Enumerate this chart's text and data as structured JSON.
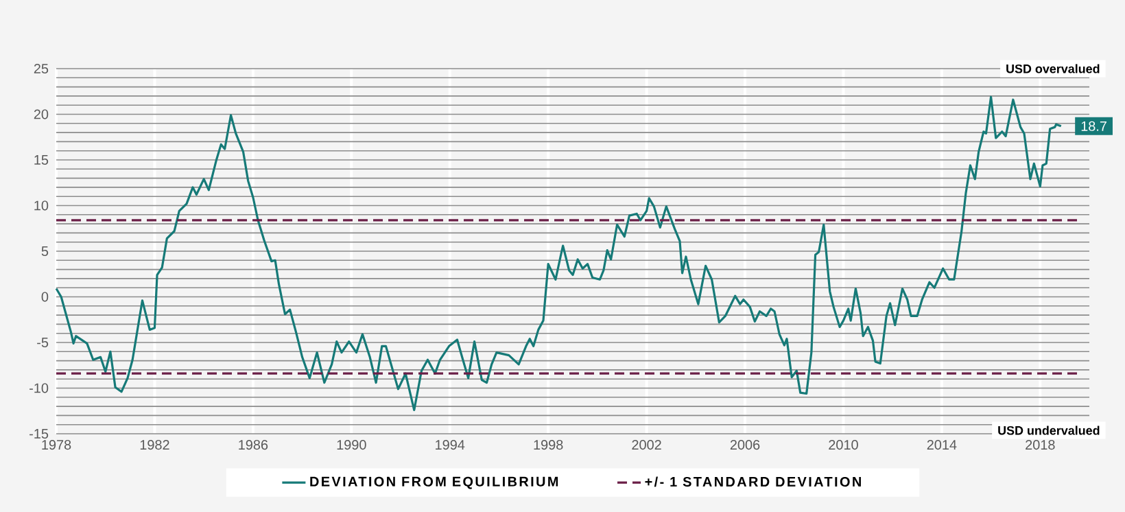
{
  "chart_data": {
    "type": "line",
    "xlim": [
      1978,
      2020
    ],
    "ylim": [
      -15,
      25
    ],
    "xticks": [
      1978,
      1982,
      1986,
      1990,
      1994,
      1998,
      2002,
      2006,
      2010,
      2014,
      2018
    ],
    "yticks": [
      -15,
      -10,
      -5,
      0,
      5,
      10,
      15,
      20,
      25
    ],
    "grid": true,
    "legend": "bottom",
    "series": [
      {
        "name": "DEVIATION FROM EQUILIBRIUM",
        "color": "#167a78",
        "line_style": "solid",
        "x": [
          1978.0,
          1978.2,
          1978.6,
          1978.7,
          1978.8,
          1979.25,
          1979.5,
          1979.8,
          1980.0,
          1980.2,
          1980.4,
          1980.65,
          1980.9,
          1981.1,
          1981.5,
          1981.8,
          1982.0,
          1982.1,
          1982.3,
          1982.5,
          1982.8,
          1983.0,
          1983.3,
          1983.55,
          1983.7,
          1984.0,
          1984.2,
          1984.5,
          1984.7,
          1984.85,
          1985.1,
          1985.3,
          1985.6,
          1985.8,
          1986.0,
          1986.2,
          1986.45,
          1986.75,
          1986.9,
          1987.05,
          1987.3,
          1987.5,
          1987.75,
          1988.0,
          1988.3,
          1988.6,
          1988.9,
          1989.2,
          1989.4,
          1989.6,
          1989.9,
          1990.2,
          1990.45,
          1990.75,
          1991.0,
          1991.24,
          1991.4,
          1991.9,
          1992.2,
          1992.55,
          1992.85,
          1993.1,
          1993.4,
          1993.6,
          1993.97,
          1994.3,
          1994.5,
          1994.75,
          1995.0,
          1995.3,
          1995.5,
          1995.7,
          1995.9,
          1996.4,
          1996.8,
          1997.1,
          1997.25,
          1997.4,
          1997.6,
          1997.8,
          1998.0,
          1998.3,
          1998.5,
          1998.6,
          1998.85,
          1999.0,
          1999.2,
          1999.4,
          1999.6,
          1999.8,
          2000.1,
          2000.25,
          2000.4,
          2000.55,
          2000.8,
          2001.1,
          2001.3,
          2001.6,
          2001.75,
          2002.0,
          2002.1,
          2002.3,
          2002.55,
          2002.8,
          2003.15,
          2003.35,
          2003.45,
          2003.6,
          2003.8,
          2004.1,
          2004.4,
          2004.65,
          2004.95,
          2005.2,
          2005.6,
          2005.8,
          2005.94,
          2006.2,
          2006.4,
          2006.6,
          2006.87,
          2007.05,
          2007.2,
          2007.4,
          2007.6,
          2007.7,
          2007.9,
          2008.1,
          2008.25,
          2008.5,
          2008.7,
          2008.86,
          2009.0,
          2009.2,
          2009.45,
          2009.6,
          2009.85,
          2010.0,
          2010.2,
          2010.3,
          2010.5,
          2010.7,
          2010.8,
          2011.0,
          2011.2,
          2011.3,
          2011.5,
          2011.75,
          2011.9,
          2012.1,
          2012.4,
          2012.6,
          2012.75,
          2013.0,
          2013.2,
          2013.5,
          2013.7,
          2014.05,
          2014.3,
          2014.5,
          2014.8,
          2014.98,
          2015.16,
          2015.35,
          2015.5,
          2015.7,
          2015.8,
          2016.0,
          2016.2,
          2016.45,
          2016.6,
          2016.9,
          2017.2,
          2017.35,
          2017.6,
          2017.75,
          2018.0,
          2018.1,
          2018.25,
          2018.4,
          2018.6,
          2018.65,
          2018.85
        ],
        "values": [
          0.9,
          0,
          -3.9,
          -5.1,
          -4.3,
          -5.1,
          -6.9,
          -6.6,
          -8.2,
          -6.0,
          -9.9,
          -10.4,
          -8.9,
          -6.9,
          -0.4,
          -3.6,
          -3.4,
          2.4,
          3.2,
          6.4,
          7.2,
          9.4,
          10.2,
          12.0,
          11.2,
          12.9,
          11.7,
          14.9,
          16.7,
          16.2,
          19.9,
          17.9,
          15.9,
          12.7,
          10.9,
          8.4,
          6.2,
          3.9,
          4.0,
          1.4,
          -1.9,
          -1.4,
          -3.9,
          -6.6,
          -8.9,
          -6.1,
          -9.4,
          -7.4,
          -4.9,
          -6.1,
          -4.9,
          -6.1,
          -4.1,
          -6.6,
          -9.4,
          -5.4,
          -5.4,
          -10.1,
          -8.4,
          -12.4,
          -8.1,
          -6.9,
          -8.4,
          -6.9,
          -5.4,
          -4.7,
          -6.6,
          -8.9,
          -4.9,
          -9.1,
          -9.4,
          -7.4,
          -6.1,
          -6.4,
          -7.4,
          -5.4,
          -4.6,
          -5.4,
          -3.6,
          -2.6,
          3.6,
          1.9,
          4.4,
          5.6,
          2.9,
          2.4,
          4.1,
          3.1,
          3.6,
          2.1,
          1.9,
          2.9,
          5.1,
          4.1,
          7.9,
          6.6,
          8.9,
          9.1,
          8.4,
          9.4,
          10.8,
          9.9,
          7.6,
          9.9,
          7.4,
          6.1,
          2.6,
          4.4,
          1.9,
          -0.8,
          3.4,
          1.9,
          -2.8,
          -2.1,
          0.1,
          -0.8,
          -0.3,
          -1.1,
          -2.7,
          -1.6,
          -2.1,
          -1.3,
          -1.6,
          -4.1,
          -5.3,
          -4.6,
          -8.8,
          -8.1,
          -10.5,
          -10.6,
          -6.1,
          4.6,
          4.9,
          7.9,
          0.6,
          -1.1,
          -3.3,
          -2.6,
          -1.3,
          -2.6,
          0.9,
          -1.8,
          -4.3,
          -3.3,
          -4.8,
          -7.1,
          -7.3,
          -2.1,
          -0.7,
          -3.1,
          0.9,
          -0.3,
          -2.1,
          -2.1,
          -0.3,
          1.6,
          1.0,
          3.1,
          1.9,
          1.9,
          7.1,
          11.4,
          14.4,
          12.9,
          15.9,
          18.1,
          17.9,
          21.9,
          17.4,
          18.1,
          17.6,
          21.6,
          18.6,
          17.9,
          12.9,
          14.6,
          12.1,
          14.4,
          14.6,
          18.4,
          18.6,
          18.9,
          18.7
        ]
      },
      {
        "name": "+/- 1 STANDARD DEVIATION",
        "color": "#6b1f47",
        "line_style": "dashed",
        "x": [
          1978,
          2019.7
        ],
        "values": [
          8.4,
          8.4
        ]
      },
      {
        "color": "#6b1f47",
        "line_style": "dashed",
        "x": [
          1978,
          2019.7
        ],
        "values": [
          -8.4,
          -8.4
        ]
      }
    ],
    "annotations": [
      "USD overvalued",
      "USD undervalued",
      {
        "text": "18.7",
        "x": 2018.85,
        "y": 18.7
      }
    ]
  }
}
